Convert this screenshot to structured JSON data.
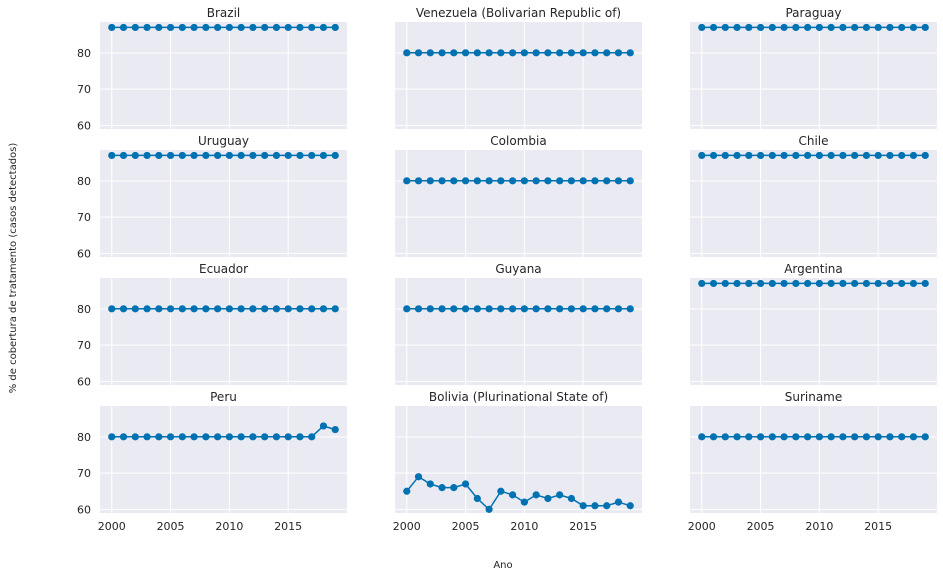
{
  "chart_data": {
    "type": "line",
    "layout": "small-multiples 4x3",
    "xlabel": "Ano",
    "ylabel": "% de cobertura de tratamento (casos detectados)",
    "x": [
      2000,
      2001,
      2002,
      2003,
      2004,
      2005,
      2006,
      2007,
      2008,
      2009,
      2010,
      2011,
      2012,
      2013,
      2014,
      2015,
      2016,
      2017,
      2018,
      2019
    ],
    "xticks": [
      2000,
      2005,
      2010,
      2015
    ],
    "xlim": [
      1999,
      2020
    ],
    "yticks": [
      60,
      70,
      80
    ],
    "ylim": [
      59,
      88.5
    ],
    "grid": true,
    "colors": {
      "line": "#0072b2",
      "panel_bg": "#eaeaf2",
      "grid": "#ffffff"
    },
    "panels": [
      {
        "title": "Brazil",
        "values": [
          87,
          87,
          87,
          87,
          87,
          87,
          87,
          87,
          87,
          87,
          87,
          87,
          87,
          87,
          87,
          87,
          87,
          87,
          87,
          87
        ]
      },
      {
        "title": "Venezuela (Bolivarian Republic of)",
        "values": [
          80,
          80,
          80,
          80,
          80,
          80,
          80,
          80,
          80,
          80,
          80,
          80,
          80,
          80,
          80,
          80,
          80,
          80,
          80,
          80
        ]
      },
      {
        "title": "Paraguay",
        "values": [
          87,
          87,
          87,
          87,
          87,
          87,
          87,
          87,
          87,
          87,
          87,
          87,
          87,
          87,
          87,
          87,
          87,
          87,
          87,
          87
        ]
      },
      {
        "title": "Uruguay",
        "values": [
          87,
          87,
          87,
          87,
          87,
          87,
          87,
          87,
          87,
          87,
          87,
          87,
          87,
          87,
          87,
          87,
          87,
          87,
          87,
          87
        ]
      },
      {
        "title": "Colombia",
        "values": [
          80,
          80,
          80,
          80,
          80,
          80,
          80,
          80,
          80,
          80,
          80,
          80,
          80,
          80,
          80,
          80,
          80,
          80,
          80,
          80
        ]
      },
      {
        "title": "Chile",
        "values": [
          87,
          87,
          87,
          87,
          87,
          87,
          87,
          87,
          87,
          87,
          87,
          87,
          87,
          87,
          87,
          87,
          87,
          87,
          87,
          87
        ]
      },
      {
        "title": "Ecuador",
        "values": [
          80,
          80,
          80,
          80,
          80,
          80,
          80,
          80,
          80,
          80,
          80,
          80,
          80,
          80,
          80,
          80,
          80,
          80,
          80,
          80
        ]
      },
      {
        "title": "Guyana",
        "values": [
          80,
          80,
          80,
          80,
          80,
          80,
          80,
          80,
          80,
          80,
          80,
          80,
          80,
          80,
          80,
          80,
          80,
          80,
          80,
          80
        ]
      },
      {
        "title": "Argentina",
        "values": [
          87,
          87,
          87,
          87,
          87,
          87,
          87,
          87,
          87,
          87,
          87,
          87,
          87,
          87,
          87,
          87,
          87,
          87,
          87,
          87
        ]
      },
      {
        "title": "Peru",
        "values": [
          80,
          80,
          80,
          80,
          80,
          80,
          80,
          80,
          80,
          80,
          80,
          80,
          80,
          80,
          80,
          80,
          80,
          80,
          83,
          82
        ]
      },
      {
        "title": "Bolivia (Plurinational State of)",
        "values": [
          65,
          69,
          67,
          66,
          66,
          67,
          63,
          60,
          65,
          64,
          62,
          64,
          63,
          64,
          63,
          61,
          61,
          61,
          62,
          61
        ]
      },
      {
        "title": "Suriname",
        "values": [
          80,
          80,
          80,
          80,
          80,
          80,
          80,
          80,
          80,
          80,
          80,
          80,
          80,
          80,
          80,
          80,
          80,
          80,
          80,
          80
        ]
      }
    ]
  }
}
